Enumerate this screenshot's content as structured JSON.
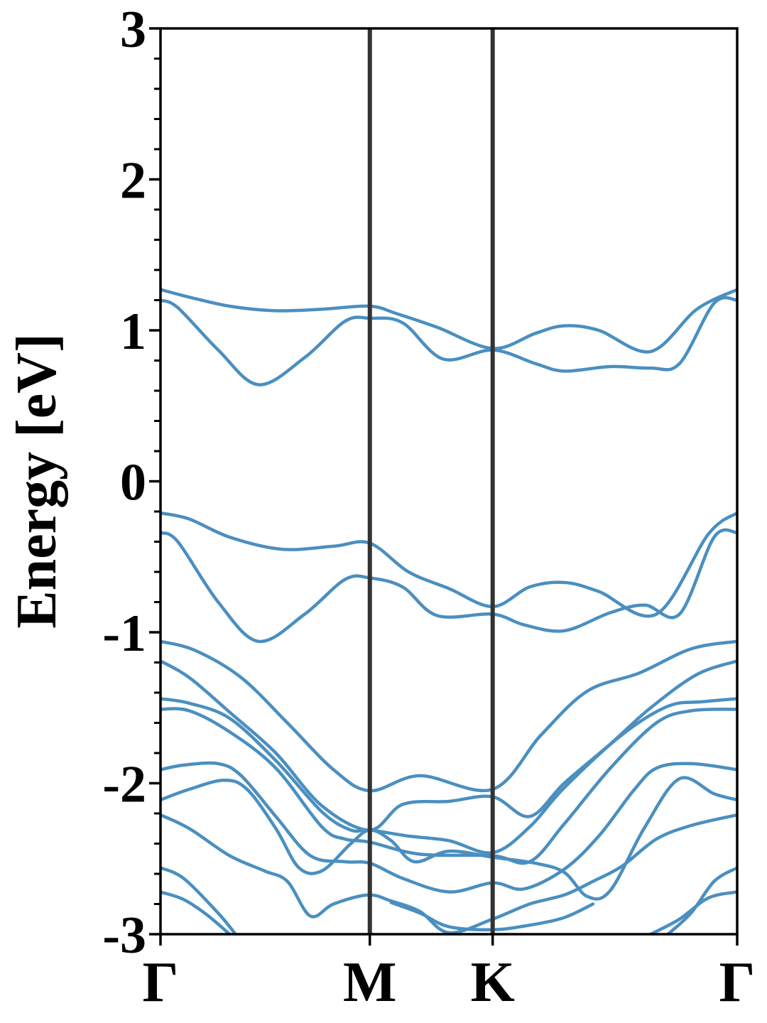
{
  "chart_data": {
    "type": "line",
    "title": "",
    "xlabel": "",
    "ylabel": "Energy [eV]",
    "ylim": [
      -3,
      3
    ],
    "yticks": [
      "3",
      "2",
      "1",
      "0",
      "-1",
      "-2",
      "-3"
    ],
    "ytick_values": [
      3,
      2,
      1,
      0,
      -1,
      -2,
      -3
    ],
    "minor_tick_step": 0.2,
    "xlim": [
      0,
      1
    ],
    "kpoints": [
      {
        "label": "Γ",
        "x": 0.0
      },
      {
        "label": "M",
        "x": 0.363
      },
      {
        "label": "K",
        "x": 0.576
      },
      {
        "label": "Γ",
        "x": 1.0
      }
    ],
    "grid": false,
    "legend": "none",
    "colors": {
      "bands": "#4a8fc0",
      "kpath_lines": "#333333",
      "axes": "#000000"
    },
    "series": [
      {
        "x": [
          0.0,
          0.05,
          0.12,
          0.2,
          0.28,
          0.363,
          0.41,
          0.48,
          0.576,
          0.65,
          0.7,
          0.76,
          0.85,
          0.93,
          1.0
        ],
        "values": [
          1.27,
          1.22,
          1.16,
          1.13,
          1.14,
          1.16,
          1.11,
          1.02,
          0.88,
          0.98,
          1.03,
          1.0,
          0.86,
          1.14,
          1.27
        ]
      },
      {
        "x": [
          0.0,
          0.03,
          0.1,
          0.17,
          0.25,
          0.32,
          0.363,
          0.42,
          0.49,
          0.576,
          0.65,
          0.7,
          0.78,
          0.85,
          0.9,
          0.96,
          1.0
        ],
        "values": [
          1.2,
          1.15,
          0.87,
          0.64,
          0.82,
          1.06,
          1.08,
          1.05,
          0.81,
          0.87,
          0.78,
          0.73,
          0.76,
          0.75,
          0.78,
          1.18,
          1.2
        ]
      },
      {
        "x": [
          0.0,
          0.05,
          0.12,
          0.21,
          0.3,
          0.363,
          0.43,
          0.5,
          0.576,
          0.64,
          0.7,
          0.76,
          0.86,
          0.95,
          1.0
        ],
        "values": [
          -0.21,
          -0.25,
          -0.37,
          -0.45,
          -0.43,
          -0.41,
          -0.6,
          -0.71,
          -0.83,
          -0.7,
          -0.67,
          -0.73,
          -0.88,
          -0.35,
          -0.21
        ]
      },
      {
        "x": [
          0.0,
          0.03,
          0.1,
          0.17,
          0.25,
          0.32,
          0.363,
          0.42,
          0.48,
          0.576,
          0.63,
          0.7,
          0.78,
          0.84,
          0.9,
          0.96,
          1.0
        ],
        "values": [
          -0.34,
          -0.4,
          -0.8,
          -1.06,
          -0.88,
          -0.65,
          -0.64,
          -0.7,
          -0.89,
          -0.88,
          -0.95,
          -0.99,
          -0.87,
          -0.82,
          -0.88,
          -0.37,
          -0.34
        ]
      },
      {
        "x": [
          0.0,
          0.06,
          0.14,
          0.22,
          0.3,
          0.363,
          0.45,
          0.576,
          0.66,
          0.74,
          0.83,
          0.92,
          1.0
        ],
        "values": [
          -1.06,
          -1.12,
          -1.3,
          -1.6,
          -1.91,
          -2.05,
          -1.95,
          -2.04,
          -1.68,
          -1.39,
          -1.27,
          -1.11,
          -1.06
        ]
      },
      {
        "x": [
          0.0,
          0.05,
          0.12,
          0.2,
          0.28,
          0.363,
          0.42,
          0.5,
          0.576,
          0.64,
          0.7,
          0.78,
          0.85,
          0.93,
          1.0
        ],
        "values": [
          -1.19,
          -1.3,
          -1.53,
          -1.8,
          -2.15,
          -2.31,
          -2.14,
          -2.12,
          -2.09,
          -2.22,
          -2.0,
          -1.74,
          -1.5,
          -1.28,
          -1.19
        ]
      },
      {
        "x": [
          0.0,
          0.05,
          0.12,
          0.2,
          0.28,
          0.33,
          0.363,
          0.43,
          0.5,
          0.576,
          0.64,
          0.7,
          0.8,
          0.88,
          0.94,
          1.0
        ],
        "values": [
          -1.44,
          -1.47,
          -1.57,
          -1.85,
          -2.19,
          -2.31,
          -2.31,
          -2.35,
          -2.38,
          -2.46,
          -2.29,
          -2.03,
          -1.68,
          -1.49,
          -1.46,
          -1.44
        ]
      },
      {
        "x": [
          0.0,
          0.05,
          0.12,
          0.2,
          0.28,
          0.32,
          0.363,
          0.45,
          0.576,
          0.64,
          0.7,
          0.78,
          0.86,
          0.92,
          1.0
        ],
        "values": [
          -1.51,
          -1.52,
          -1.66,
          -1.9,
          -2.29,
          -2.37,
          -2.39,
          -2.47,
          -2.48,
          -2.52,
          -2.27,
          -1.9,
          -1.6,
          -1.52,
          -1.51
        ]
      },
      {
        "x": [
          0.0,
          0.04,
          0.1,
          0.14,
          0.2,
          0.26,
          0.32,
          0.363,
          0.42,
          0.5,
          0.576,
          0.63,
          0.7,
          0.76,
          0.82,
          0.86,
          0.92,
          1.0
        ],
        "values": [
          -1.91,
          -1.88,
          -1.87,
          -1.95,
          -2.22,
          -2.48,
          -2.52,
          -2.53,
          -2.63,
          -2.72,
          -2.66,
          -2.7,
          -2.57,
          -2.35,
          -2.05,
          -1.9,
          -1.87,
          -1.91
        ]
      },
      {
        "x": [
          0.0,
          0.05,
          0.11,
          0.15,
          0.2,
          0.24,
          0.28,
          0.33,
          0.363,
          0.4,
          0.44,
          0.5,
          0.576,
          0.65,
          0.7,
          0.74,
          0.78,
          0.84,
          0.9,
          0.96,
          1.0
        ],
        "values": [
          -2.11,
          -2.04,
          -1.98,
          -2.04,
          -2.3,
          -2.56,
          -2.58,
          -2.4,
          -2.31,
          -2.38,
          -2.52,
          -2.45,
          -2.49,
          -2.53,
          -2.59,
          -2.75,
          -2.71,
          -2.29,
          -1.97,
          -2.07,
          -2.11
        ]
      },
      {
        "x": [
          0.0,
          0.05,
          0.12,
          0.18,
          0.22,
          0.26,
          0.3,
          0.36,
          0.4,
          0.45,
          0.5,
          0.576,
          0.64,
          0.7,
          0.75,
          0.8,
          0.86,
          0.92,
          1.0
        ],
        "values": [
          -2.21,
          -2.3,
          -2.48,
          -2.58,
          -2.65,
          -2.88,
          -2.8,
          -2.74,
          -2.78,
          -2.85,
          -2.99,
          -2.9,
          -2.8,
          -2.74,
          -2.65,
          -2.55,
          -2.37,
          -2.28,
          -2.21
        ]
      },
      {
        "x": [
          0.0,
          0.04,
          0.1,
          0.13
        ],
        "values": [
          -2.56,
          -2.63,
          -2.86,
          -3.0
        ]
      },
      {
        "x": [
          0.0,
          0.04,
          0.08,
          0.12
        ],
        "values": [
          -2.72,
          -2.77,
          -2.87,
          -3.0
        ]
      },
      {
        "x": [
          0.4,
          0.45,
          0.5,
          0.576,
          0.64,
          0.7,
          0.75
        ],
        "values": [
          -2.79,
          -2.86,
          -2.95,
          -2.97,
          -2.94,
          -2.89,
          -2.8
        ]
      },
      {
        "x": [
          0.85,
          0.9,
          0.95,
          1.0
        ],
        "values": [
          -3.0,
          -2.9,
          -2.76,
          -2.72
        ]
      },
      {
        "x": [
          0.88,
          0.92,
          0.96,
          1.0
        ],
        "values": [
          -3.0,
          -2.86,
          -2.65,
          -2.56
        ]
      }
    ]
  }
}
